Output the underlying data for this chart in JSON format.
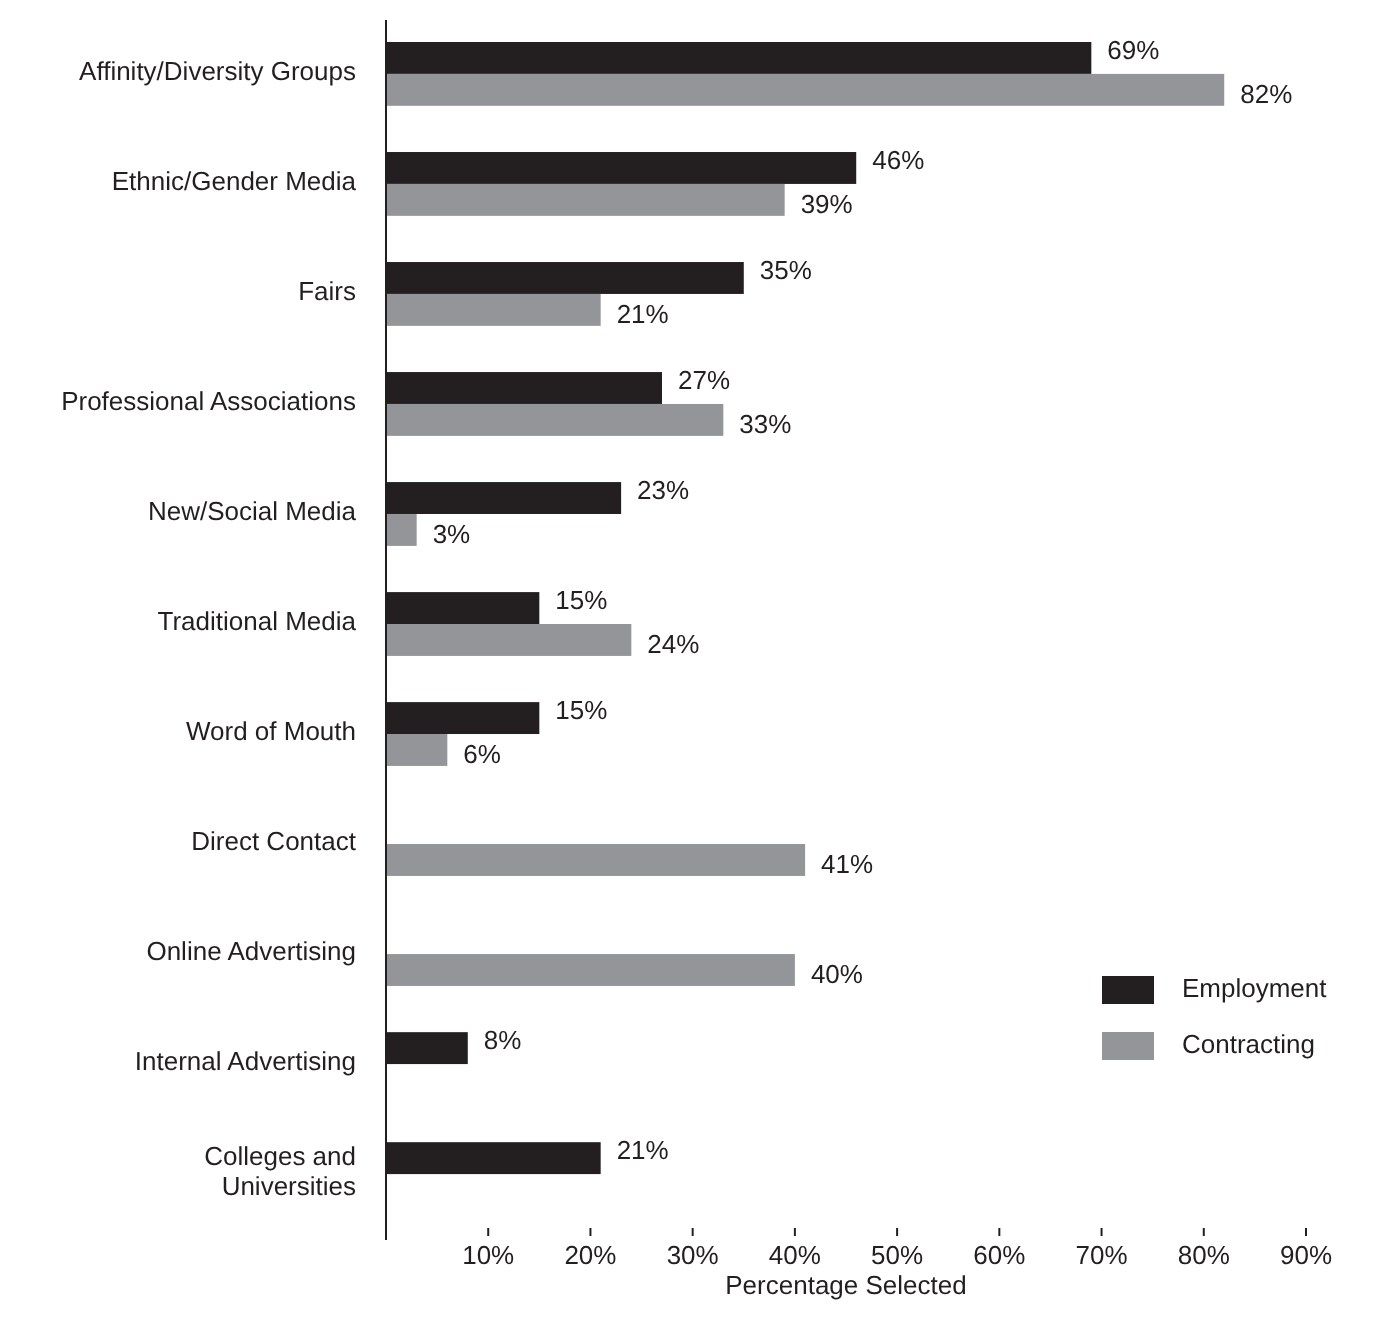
{
  "chart_data": {
    "type": "bar",
    "orientation": "horizontal",
    "xlabel": "Percentage Selected",
    "categories": [
      "Affinity/Diversity Groups",
      "Ethnic/Gender Media",
      "Fairs",
      "Professional Associations",
      "New/Social Media",
      "Traditional Media",
      "Word of Mouth",
      "Direct Contact",
      "Online Advertising",
      "Internal Advertising",
      "Colleges and\nUniversities"
    ],
    "series": [
      {
        "name": "Employment",
        "color": "#231f20",
        "values": [
          69,
          46,
          35,
          27,
          23,
          15,
          15,
          null,
          null,
          8,
          21
        ],
        "value_labels": [
          "69%",
          "46%",
          "35%",
          "27%",
          "23%",
          "15%",
          "15%",
          null,
          null,
          "8%",
          "21%"
        ]
      },
      {
        "name": "Contracting",
        "color": "#939598",
        "values": [
          82,
          39,
          21,
          33,
          3,
          24,
          6,
          41,
          40,
          null,
          null
        ],
        "value_labels": [
          "82%",
          "39%",
          "21%",
          "33%",
          "3%",
          "24%",
          "6%",
          "41%",
          "40%",
          null,
          null
        ]
      }
    ],
    "xlim": [
      0,
      90
    ],
    "xticks": [
      {
        "value": 10,
        "label": "10%"
      },
      {
        "value": 20,
        "label": "20%"
      },
      {
        "value": 30,
        "label": "30%"
      },
      {
        "value": 40,
        "label": "40%"
      },
      {
        "value": 50,
        "label": "50%"
      },
      {
        "value": 60,
        "label": "60%"
      },
      {
        "value": 70,
        "label": "70%"
      },
      {
        "value": 80,
        "label": "80%"
      },
      {
        "value": 90,
        "label": "90%"
      }
    ],
    "grid": false,
    "legend": "bottom right"
  }
}
